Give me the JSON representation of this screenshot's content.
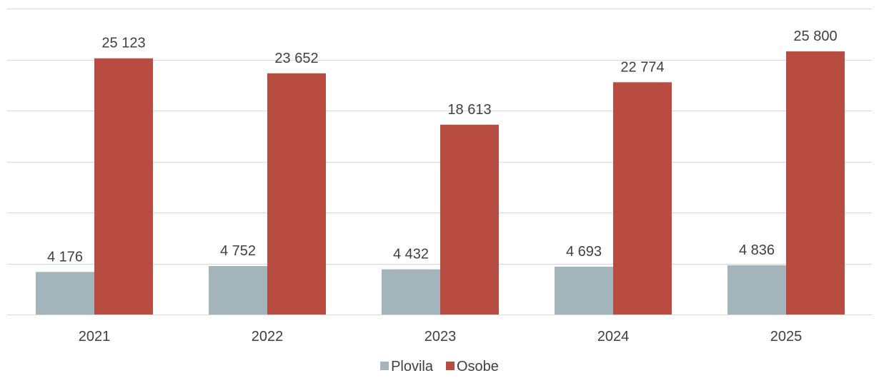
{
  "chart_data": {
    "type": "bar",
    "categories": [
      "2021",
      "2022",
      "2023",
      "2024",
      "2025"
    ],
    "series": [
      {
        "name": "Plovila",
        "color": "#a3b5ba",
        "values": [
          4176,
          4752,
          4432,
          4693,
          4836
        ],
        "labels": [
          "4 176",
          "4 752",
          "4 432",
          "4 693",
          "4 836"
        ]
      },
      {
        "name": "Osobe",
        "color": "#b84c40",
        "values": [
          25123,
          23652,
          18613,
          22774,
          25800
        ],
        "labels": [
          "25 123",
          "23 652",
          "18 613",
          "22 774",
          "25 800"
        ]
      }
    ],
    "ylim": [
      0,
      30000
    ],
    "y_gridline_step": 5000,
    "grid": true,
    "legend": "bottom-center",
    "title": "",
    "xlabel": "",
    "ylabel": ""
  }
}
